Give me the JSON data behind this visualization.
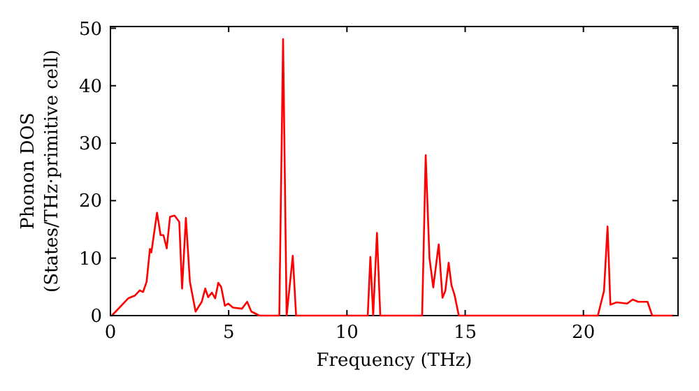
{
  "chart_data": {
    "type": "line",
    "xlabel": "Frequency (THz)",
    "ylabel": "Phonon DOS\n(States/THz·primitive cell)",
    "xlim": [
      0,
      24
    ],
    "ylim": [
      0,
      50.3
    ],
    "xticks": [
      0,
      5,
      10,
      15,
      20
    ],
    "yticks": [
      0,
      10,
      20,
      30,
      40,
      50
    ],
    "grid": false,
    "marker": "none",
    "line_style": "solid",
    "series": [
      {
        "color": "#ff0000",
        "x": [
          0,
          0.06,
          0.75,
          1.04,
          1.24,
          1.38,
          1.53,
          1.67,
          1.73,
          1.97,
          2.12,
          2.24,
          2.38,
          2.52,
          2.71,
          2.91,
          3.03,
          3.19,
          3.36,
          3.6,
          3.86,
          4.01,
          4.13,
          4.29,
          4.43,
          4.56,
          4.68,
          4.84,
          4.98,
          5.18,
          5.56,
          5.78,
          5.96,
          6.3,
          7.14,
          7.3,
          7.45,
          7.71,
          7.85,
          10.88,
          10.99,
          11.11,
          11.27,
          11.41,
          13.18,
          13.33,
          13.49,
          13.65,
          13.88,
          14.04,
          14.16,
          14.3,
          14.42,
          14.55,
          14.73,
          20.61,
          20.87,
          21.02,
          21.14,
          21.4,
          21.85,
          22.08,
          22.32,
          22.71,
          22.91,
          23.8
        ],
        "values": [
          0,
          0,
          3,
          3.5,
          4.4,
          4.1,
          5.9,
          11.6,
          11,
          17.9,
          14,
          14,
          11.7,
          17.2,
          17.4,
          16.3,
          4.7,
          17,
          5.9,
          0.7,
          2.4,
          4.7,
          3.2,
          4,
          3,
          5.7,
          5,
          1.7,
          2.1,
          1.4,
          1.2,
          2.4,
          0.7,
          0,
          0,
          48.1,
          0,
          10.4,
          0,
          0,
          10.2,
          0,
          14.4,
          0,
          0,
          27.9,
          10,
          4.9,
          12.4,
          3.1,
          4.3,
          9.2,
          5.3,
          3.6,
          0,
          0,
          4.3,
          15.5,
          1.9,
          2.3,
          2.1,
          2.8,
          2.4,
          2.4,
          0,
          0
        ]
      }
    ]
  }
}
